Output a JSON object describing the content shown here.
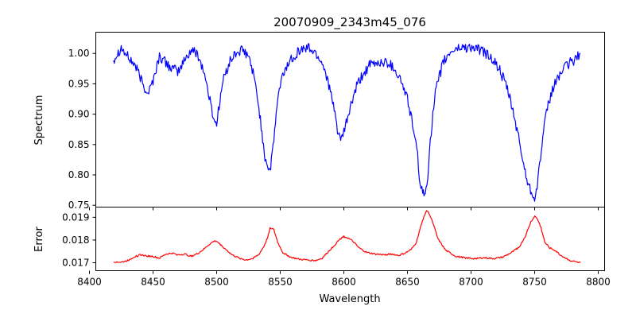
{
  "chart_data": [
    {
      "type": "line",
      "panel": "top",
      "title": "20070909_2343m45_076",
      "xlabel": "",
      "ylabel": "Spectrum",
      "xlim": [
        8405,
        8805
      ],
      "ylim": [
        0.747,
        1.035
      ],
      "xticks": [
        8400,
        8450,
        8500,
        8550,
        8600,
        8650,
        8700,
        8750,
        8800
      ],
      "yticks": [
        0.75,
        0.8,
        0.85,
        0.9,
        0.95,
        1.0
      ],
      "ytick_labels": [
        "0.75",
        "0.80",
        "0.85",
        "0.90",
        "0.95",
        "1.00"
      ],
      "grid": false,
      "series": [
        {
          "color": "#0000ff",
          "x": [
            8419,
            8422,
            8425,
            8428,
            8432,
            8436,
            8440,
            8443,
            8446,
            8450,
            8455,
            8460,
            8465,
            8470,
            8475,
            8480,
            8485,
            8490,
            8493,
            8496,
            8498,
            8500,
            8502,
            8505,
            8510,
            8515,
            8520,
            8525,
            8528,
            8532,
            8535,
            8538,
            8540,
            8542,
            8543,
            8545,
            8548,
            8552,
            8558,
            8565,
            8572,
            8578,
            8583,
            8587,
            8590,
            8593,
            8595,
            8597,
            8598,
            8600,
            8605,
            8610,
            8615,
            8620,
            8628,
            8635,
            8640,
            8645,
            8650,
            8654,
            8658,
            8660,
            8662,
            8663,
            8664,
            8666,
            8668,
            8672,
            8678,
            8685,
            8692,
            8700,
            8708,
            8715,
            8722,
            8728,
            8733,
            8738,
            8742,
            8745,
            8748,
            8750,
            8752,
            8754,
            8757,
            8760,
            8764,
            8768,
            8773,
            8778,
            8782,
            8786
          ],
          "y": [
            0.99,
            1.0,
            1.01,
            1.0,
            0.99,
            0.98,
            0.96,
            0.945,
            0.935,
            0.955,
            0.995,
            0.985,
            0.975,
            0.97,
            0.99,
            1.005,
            1.0,
            0.97,
            0.94,
            0.91,
            0.89,
            0.885,
            0.915,
            0.955,
            0.985,
            1.0,
            1.005,
            0.995,
            0.975,
            0.93,
            0.88,
            0.83,
            0.815,
            0.808,
            0.82,
            0.86,
            0.925,
            0.965,
            0.99,
            1.005,
            1.01,
            1.0,
            0.985,
            0.96,
            0.93,
            0.9,
            0.875,
            0.862,
            0.855,
            0.87,
            0.91,
            0.945,
            0.965,
            0.98,
            0.985,
            0.985,
            0.975,
            0.955,
            0.925,
            0.885,
            0.83,
            0.785,
            0.77,
            0.765,
            0.77,
            0.8,
            0.86,
            0.935,
            0.985,
            1.005,
            1.01,
            1.01,
            1.005,
            0.995,
            0.975,
            0.945,
            0.905,
            0.855,
            0.81,
            0.785,
            0.77,
            0.765,
            0.78,
            0.82,
            0.87,
            0.91,
            0.94,
            0.96,
            0.975,
            0.985,
            0.99,
            1.0
          ]
        }
      ]
    },
    {
      "type": "line",
      "panel": "bottom",
      "xlabel": "Wavelength",
      "ylabel": "Error",
      "xlim": [
        8405,
        8805
      ],
      "ylim": [
        0.01665,
        0.01945
      ],
      "xticks": [
        8400,
        8450,
        8500,
        8550,
        8600,
        8650,
        8700,
        8750,
        8800
      ],
      "xtick_labels": [
        "8400",
        "8450",
        "8500",
        "8550",
        "8600",
        "8650",
        "8700",
        "8750",
        "8800"
      ],
      "yticks": [
        0.017,
        0.018,
        0.019
      ],
      "ytick_labels": [
        "0.017",
        "0.018",
        "0.019"
      ],
      "grid": false,
      "series": [
        {
          "color": "#ff0000",
          "x": [
            8419,
            8425,
            8430,
            8435,
            8440,
            8445,
            8450,
            8455,
            8460,
            8465,
            8470,
            8475,
            8480,
            8485,
            8490,
            8494,
            8498,
            8500,
            8503,
            8507,
            8512,
            8518,
            8523,
            8528,
            8533,
            8537,
            8540,
            8542,
            8545,
            8548,
            8552,
            8558,
            8565,
            8572,
            8578,
            8583,
            8588,
            8593,
            8597,
            8600,
            8603,
            8607,
            8612,
            8618,
            8625,
            8632,
            8638,
            8643,
            8648,
            8653,
            8657,
            8660,
            8663,
            8665,
            8667,
            8670,
            8674,
            8680,
            8688,
            8695,
            8702,
            8710,
            8718,
            8725,
            8732,
            8738,
            8743,
            8747,
            8750,
            8752,
            8755,
            8758,
            8762,
            8766,
            8770,
            8774,
            8778,
            8782,
            8786
          ],
          "y": [
            0.01705,
            0.01702,
            0.0171,
            0.01725,
            0.01735,
            0.0173,
            0.01728,
            0.0172,
            0.01738,
            0.01742,
            0.01735,
            0.01738,
            0.01728,
            0.0174,
            0.0176,
            0.0178,
            0.01795,
            0.01795,
            0.0178,
            0.0176,
            0.01735,
            0.0172,
            0.01712,
            0.01718,
            0.01735,
            0.0177,
            0.0181,
            0.01855,
            0.01845,
            0.0179,
            0.01745,
            0.01725,
            0.01715,
            0.01712,
            0.0171,
            0.0172,
            0.0175,
            0.0178,
            0.01805,
            0.01815,
            0.0181,
            0.01795,
            0.01765,
            0.01745,
            0.01738,
            0.01735,
            0.01738,
            0.01732,
            0.01742,
            0.01758,
            0.0179,
            0.0185,
            0.01905,
            0.0193,
            0.01918,
            0.01875,
            0.01805,
            0.01755,
            0.01728,
            0.01722,
            0.01718,
            0.01722,
            0.01718,
            0.01725,
            0.01745,
            0.0177,
            0.0182,
            0.0188,
            0.01905,
            0.01895,
            0.01855,
            0.0179,
            0.01765,
            0.01755,
            0.01735,
            0.01722,
            0.0171,
            0.01705,
            0.017
          ]
        }
      ]
    }
  ]
}
